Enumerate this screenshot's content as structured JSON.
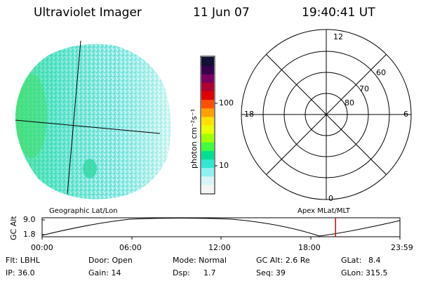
{
  "header": {
    "instrument": "Ultraviolet Imager",
    "date": "11 Jun 07",
    "time": "19:40:41 UT"
  },
  "colorbar": {
    "unit_label": "photon cm⁻²s⁻¹",
    "ticks": [
      "100",
      "10"
    ],
    "colors": [
      "#111133",
      "#3a0050",
      "#7a0060",
      "#b00030",
      "#e00000",
      "#ff5000",
      "#ffa000",
      "#ffe000",
      "#e8ff00",
      "#a0ff00",
      "#40ff40",
      "#00e090",
      "#30e8d0",
      "#90f0f0",
      "#d8f4f4",
      "#f4f4f4"
    ]
  },
  "polar_plot": {
    "mlt_labels": {
      "top": "12",
      "left": "18",
      "right": "6",
      "bottom": "0"
    },
    "lat_labels": [
      "60",
      "70",
      "80"
    ]
  },
  "timeline": {
    "axis_title": "GC Alt",
    "y_ticks": [
      "9.0",
      "1.8"
    ],
    "left_label": "Geographic Lat/Lon",
    "right_label": "Apex  MLat/MLT",
    "x_ticks": [
      "00:00",
      "06:00",
      "12:00",
      "18:00",
      "23:59"
    ],
    "marker_time_hours": 19.68,
    "marker_color": "#e00000"
  },
  "params": {
    "row1": {
      "flt": "Flt: LBHL",
      "door": "Door: Open",
      "mode": "Mode: Normal",
      "gcalt": "GC Alt: 2.6 Re",
      "glat_label": "GLat:",
      "glat_value": "8.4"
    },
    "row2": {
      "ip": "IP: 36.0",
      "gain": "Gain: 14",
      "dsp_label": "Dsp:",
      "dsp_value": "1.7",
      "seq": "Seq: 39",
      "glon_label": "GLon:",
      "glon_value": "315.5"
    }
  }
}
